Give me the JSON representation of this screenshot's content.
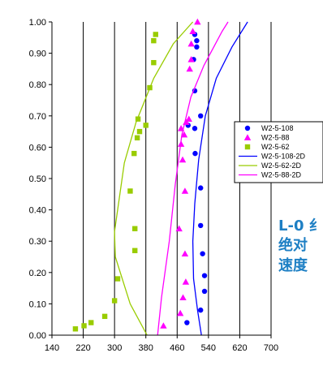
{
  "chart_data": {
    "type": "scatter",
    "xlim": [
      140,
      700
    ],
    "ylim": [
      0,
      1.0
    ],
    "x_ticks": [
      "140",
      "220",
      "300",
      "380",
      "460",
      "540",
      "620",
      "700"
    ],
    "y_ticks": [
      "0.00",
      "0.10",
      "0.20",
      "0.30",
      "0.40",
      "0.50",
      "0.60",
      "0.70",
      "0.80",
      "0.90",
      "1.00"
    ],
    "grid": "vertical",
    "legend_position": "right",
    "series": [
      {
        "name": "W2-5-108",
        "kind": "marker",
        "marker": "circle",
        "color": "#0000ff",
        "points": [
          [
            505,
            0.96
          ],
          [
            510,
            0.94
          ],
          [
            510,
            0.92
          ],
          [
            502,
            0.88
          ],
          [
            505,
            0.78
          ],
          [
            520,
            0.7
          ],
          [
            488,
            0.67
          ],
          [
            505,
            0.66
          ],
          [
            506,
            0.58
          ],
          [
            520,
            0.47
          ],
          [
            520,
            0.35
          ],
          [
            525,
            0.26
          ],
          [
            530,
            0.19
          ],
          [
            530,
            0.14
          ],
          [
            520,
            0.08
          ],
          [
            485,
            0.04
          ]
        ]
      },
      {
        "name": "W2-5-88",
        "kind": "marker",
        "marker": "triangle",
        "color": "#ff00ff",
        "points": [
          [
            512,
            1.0
          ],
          [
            500,
            0.97
          ],
          [
            496,
            0.93
          ],
          [
            496,
            0.88
          ],
          [
            492,
            0.85
          ],
          [
            490,
            0.69
          ],
          [
            483,
            0.68
          ],
          [
            470,
            0.66
          ],
          [
            478,
            0.64
          ],
          [
            470,
            0.61
          ],
          [
            474,
            0.56
          ],
          [
            480,
            0.46
          ],
          [
            465,
            0.34
          ],
          [
            480,
            0.26
          ],
          [
            482,
            0.17
          ],
          [
            475,
            0.12
          ],
          [
            468,
            0.07
          ],
          [
            425,
            0.03
          ]
        ]
      },
      {
        "name": "W2-5-62",
        "kind": "marker",
        "marker": "square",
        "color": "#99cc00",
        "points": [
          [
            405,
            0.96
          ],
          [
            400,
            0.94
          ],
          [
            400,
            0.87
          ],
          [
            390,
            0.79
          ],
          [
            360,
            0.69
          ],
          [
            380,
            0.67
          ],
          [
            364,
            0.65
          ],
          [
            358,
            0.63
          ],
          [
            350,
            0.58
          ],
          [
            340,
            0.46
          ],
          [
            352,
            0.34
          ],
          [
            352,
            0.27
          ],
          [
            308,
            0.18
          ],
          [
            300,
            0.11
          ],
          [
            275,
            0.06
          ],
          [
            240,
            0.04
          ],
          [
            222,
            0.03
          ],
          [
            200,
            0.02
          ]
        ]
      },
      {
        "name": "W2-5-108-2D",
        "kind": "line",
        "color": "#0000ff",
        "points": [
          [
            522,
            0.0
          ],
          [
            512,
            0.08
          ],
          [
            502,
            0.18
          ],
          [
            500,
            0.3
          ],
          [
            505,
            0.42
          ],
          [
            515,
            0.56
          ],
          [
            532,
            0.7
          ],
          [
            560,
            0.82
          ],
          [
            600,
            0.92
          ],
          [
            640,
            1.0
          ]
        ]
      },
      {
        "name": "W2-5-62-2D",
        "kind": "line",
        "color": "#99cc00",
        "points": [
          [
            383,
            0.0
          ],
          [
            340,
            0.1
          ],
          [
            302,
            0.25
          ],
          [
            300,
            0.33
          ],
          [
            325,
            0.55
          ],
          [
            355,
            0.68
          ],
          [
            400,
            0.82
          ],
          [
            450,
            0.93
          ],
          [
            500,
            1.0
          ]
        ]
      },
      {
        "name": "W2-5-88-2D",
        "kind": "line",
        "color": "#ff00ff",
        "points": [
          [
            410,
            0.0
          ],
          [
            420,
            0.12
          ],
          [
            440,
            0.3
          ],
          [
            455,
            0.48
          ],
          [
            472,
            0.64
          ],
          [
            495,
            0.76
          ],
          [
            528,
            0.86
          ],
          [
            575,
            0.97
          ],
          [
            590,
            1.0
          ]
        ]
      }
    ]
  },
  "side_text": {
    "line1": "L-0 ",
    "line1_cn": "纟",
    "line2": "绝对",
    "line3": "速度"
  }
}
